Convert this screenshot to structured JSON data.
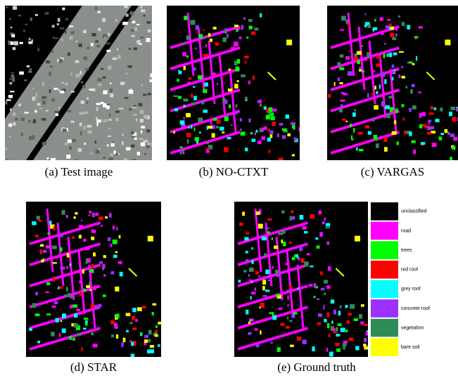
{
  "panels": [
    {
      "caption": "(a) Test image"
    },
    {
      "caption": "(b) NO-CTXT"
    },
    {
      "caption": "(c) VARGAS"
    },
    {
      "caption": "(d) STAR"
    },
    {
      "caption": "(e) Ground truth"
    }
  ],
  "legend": {
    "items": [
      {
        "label": "unclassified",
        "color": "#000000"
      },
      {
        "label": "road",
        "color": "#ff00ff"
      },
      {
        "label": "trees",
        "color": "#00ff00"
      },
      {
        "label": "red roof",
        "color": "#ff0000"
      },
      {
        "label": "grey roof",
        "color": "#00ffff"
      },
      {
        "label": "concrete roof",
        "color": "#9b30ff"
      },
      {
        "label": "vegetation",
        "color": "#2e8b57"
      },
      {
        "label": "bare soil",
        "color": "#ffff00"
      }
    ]
  }
}
